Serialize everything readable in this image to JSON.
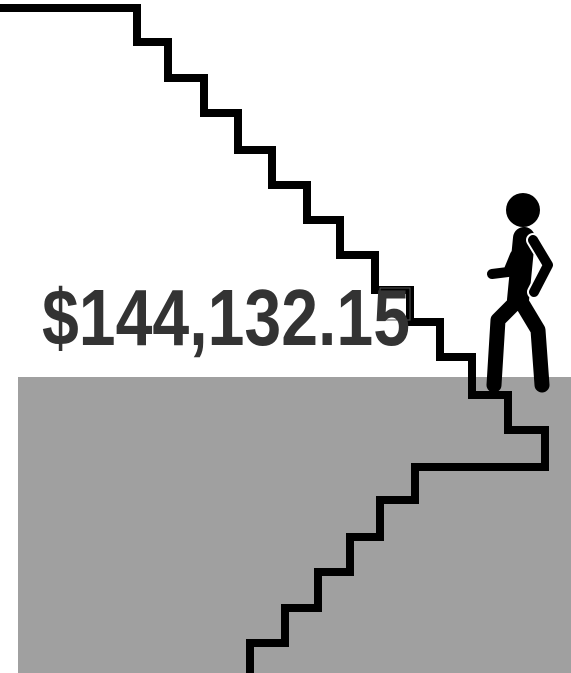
{
  "amount_label": "$144,132.15"
}
